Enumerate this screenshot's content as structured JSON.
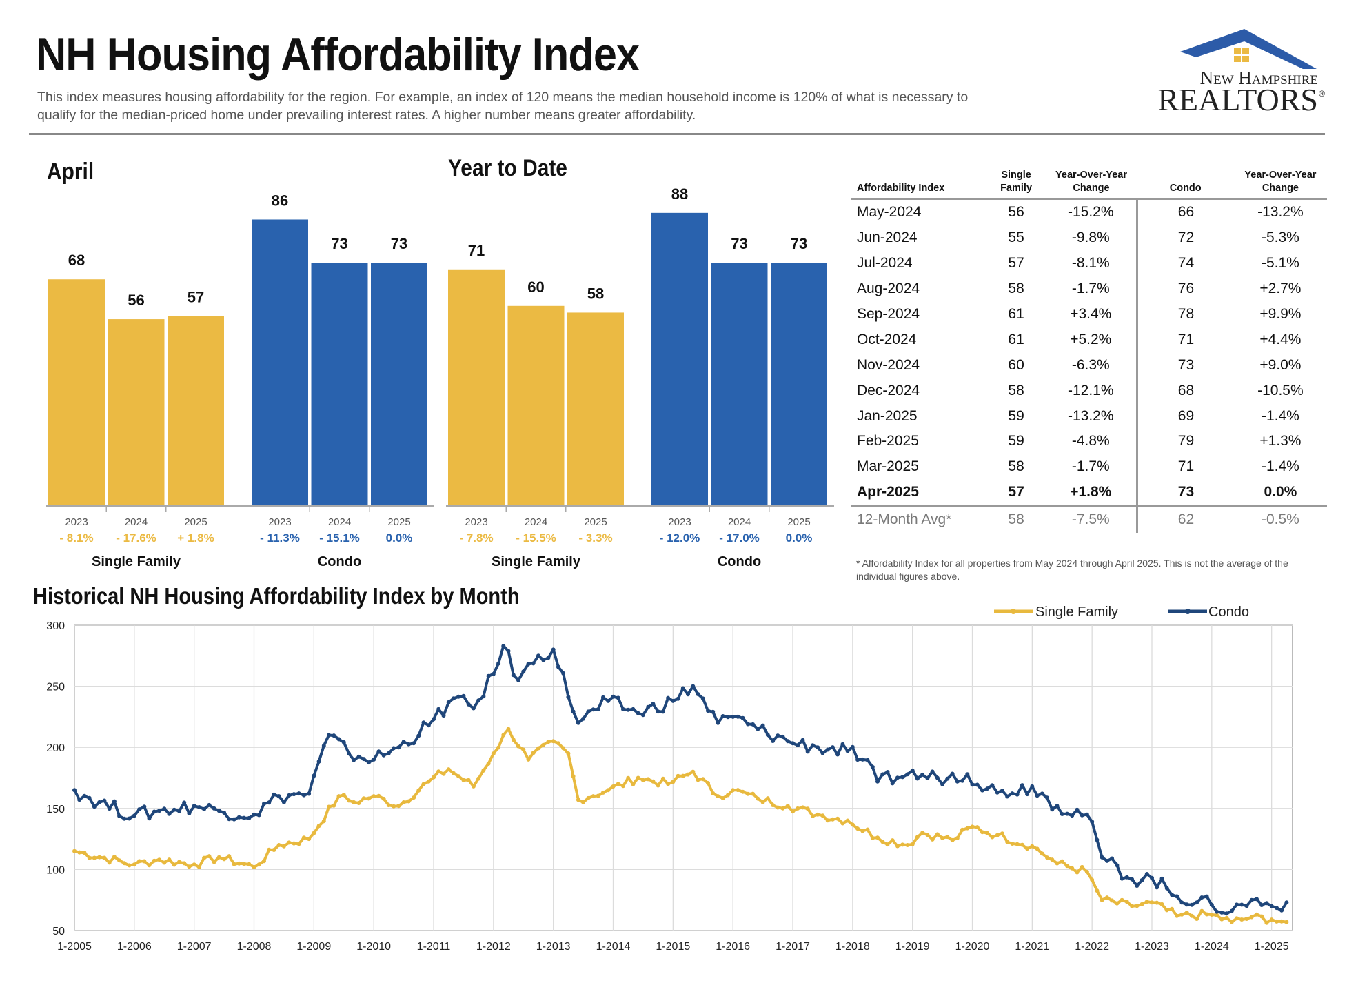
{
  "header": {
    "title": "NH Housing Affordability Index",
    "subtitle": "This index measures housing affordability for the region. For example, an index of 120 means the median household income is 120% of what is necessary to qualify for the median-priced home under prevailing interest rates. A higher number means greater affordability.",
    "logo_line1": "New Hampshire",
    "logo_line2": "REALTORS",
    "logo_mark": "®"
  },
  "colors": {
    "single_family": "#EBBA43",
    "condo": "#2962AE",
    "hist_sf": "#E8B93E",
    "hist_condo": "#1F467A"
  },
  "chart_data": [
    {
      "type": "bar",
      "title": "April",
      "groups": [
        {
          "name": "Single Family",
          "years": [
            "2023",
            "2024",
            "2025"
          ],
          "values": [
            68,
            56,
            57
          ],
          "changes": [
            "- 8.1%",
            "- 17.6%",
            "+ 1.8%"
          ]
        },
        {
          "name": "Condo",
          "years": [
            "2023",
            "2024",
            "2025"
          ],
          "values": [
            86,
            73,
            73
          ],
          "changes": [
            "- 11.3%",
            "- 15.1%",
            "0.0%"
          ]
        }
      ]
    },
    {
      "type": "bar",
      "title": "Year to Date",
      "groups": [
        {
          "name": "Single Family",
          "years": [
            "2023",
            "2024",
            "2025"
          ],
          "values": [
            71,
            60,
            58
          ],
          "changes": [
            "- 7.8%",
            "- 15.5%",
            "- 3.3%"
          ]
        },
        {
          "name": "Condo",
          "years": [
            "2023",
            "2024",
            "2025"
          ],
          "values": [
            88,
            73,
            73
          ],
          "changes": [
            "- 12.0%",
            "- 17.0%",
            "0.0%"
          ]
        }
      ]
    },
    {
      "type": "table",
      "columns": [
        "Affordability Index",
        "Single Family",
        "Year-Over-Year Change",
        "Condo",
        "Year-Over-Year Change"
      ],
      "rows": [
        [
          "May-2024",
          "56",
          "-15.2%",
          "66",
          "-13.2%"
        ],
        [
          "Jun-2024",
          "55",
          "-9.8%",
          "72",
          "-5.3%"
        ],
        [
          "Jul-2024",
          "57",
          "-8.1%",
          "74",
          "-5.1%"
        ],
        [
          "Aug-2024",
          "58",
          "-1.7%",
          "76",
          "+2.7%"
        ],
        [
          "Sep-2024",
          "61",
          "+3.4%",
          "78",
          "+9.9%"
        ],
        [
          "Oct-2024",
          "61",
          "+5.2%",
          "71",
          "+4.4%"
        ],
        [
          "Nov-2024",
          "60",
          "-6.3%",
          "73",
          "+9.0%"
        ],
        [
          "Dec-2024",
          "58",
          "-12.1%",
          "68",
          "-10.5%"
        ],
        [
          "Jan-2025",
          "59",
          "-13.2%",
          "69",
          "-1.4%"
        ],
        [
          "Feb-2025",
          "59",
          "-4.8%",
          "79",
          "+1.3%"
        ],
        [
          "Mar-2025",
          "58",
          "-1.7%",
          "71",
          "-1.4%"
        ],
        [
          "Apr-2025",
          "57",
          "+1.8%",
          "73",
          "0.0%"
        ]
      ],
      "avg_row": [
        "12-Month Avg*",
        "58",
        "-7.5%",
        "62",
        "-0.5%"
      ],
      "footnote": "* Affordability Index for all properties from May 2024 through April 2025. This is not the average of the individual figures above."
    },
    {
      "type": "line",
      "title": "Historical NH Housing Affordability Index by Month",
      "ylim": [
        50,
        300
      ],
      "yticks": [
        50,
        100,
        150,
        200,
        250,
        300
      ],
      "xticks": [
        "1-2005",
        "1-2006",
        "1-2007",
        "1-2008",
        "1-2009",
        "1-2010",
        "1-2011",
        "1-2012",
        "1-2013",
        "1-2014",
        "1-2015",
        "1-2016",
        "1-2017",
        "1-2018",
        "1-2019",
        "1-2020",
        "1-2021",
        "1-2022",
        "1-2023",
        "1-2024",
        "1-2025"
      ],
      "grid": true,
      "legend": "top-right",
      "series": [
        {
          "name": "Single Family",
          "anchors": [
            [
              "2005-01",
              115
            ],
            [
              "2006-01",
              104
            ],
            [
              "2006-06",
              108
            ],
            [
              "2007-01",
              104
            ],
            [
              "2007-06",
              110
            ],
            [
              "2008-01",
              102
            ],
            [
              "2008-06",
              120
            ],
            [
              "2008-12",
              125
            ],
            [
              "2009-06",
              160
            ],
            [
              "2009-09",
              155
            ],
            [
              "2010-01",
              160
            ],
            [
              "2010-06",
              152
            ],
            [
              "2010-12",
              172
            ],
            [
              "2011-04",
              182
            ],
            [
              "2011-09",
              168
            ],
            [
              "2012-01",
              195
            ],
            [
              "2012-04",
              215
            ],
            [
              "2012-08",
              190
            ],
            [
              "2013-01",
              205
            ],
            [
              "2013-04",
              195
            ],
            [
              "2013-06",
              157
            ],
            [
              "2013-12",
              165
            ],
            [
              "2014-06",
              175
            ],
            [
              "2014-12",
              170
            ],
            [
              "2015-05",
              180
            ],
            [
              "2015-10",
              160
            ],
            [
              "2016-01",
              165
            ],
            [
              "2016-06",
              158
            ],
            [
              "2016-12",
              152
            ],
            [
              "2017-06",
              145
            ],
            [
              "2017-12",
              140
            ],
            [
              "2018-06",
              126
            ],
            [
              "2018-12",
              120
            ],
            [
              "2019-03",
              130
            ],
            [
              "2019-09",
              124
            ],
            [
              "2020-01",
              135
            ],
            [
              "2020-06",
              128
            ],
            [
              "2021-01",
              119
            ],
            [
              "2021-06",
              105
            ],
            [
              "2021-12",
              98
            ],
            [
              "2022-03",
              75
            ],
            [
              "2022-09",
              70
            ],
            [
              "2023-01",
              73
            ],
            [
              "2023-06",
              62
            ],
            [
              "2024-01",
              63
            ],
            [
              "2024-05",
              57
            ],
            [
              "2024-09",
              61
            ],
            [
              "2025-01",
              59
            ],
            [
              "2025-04",
              57
            ]
          ]
        },
        {
          "name": "Condo",
          "anchors": [
            [
              "2005-01",
              165
            ],
            [
              "2005-06",
              155
            ],
            [
              "2006-01",
              144
            ],
            [
              "2006-06",
              148
            ],
            [
              "2007-01",
              152
            ],
            [
              "2007-06",
              148
            ],
            [
              "2008-01",
              145
            ],
            [
              "2008-06",
              160
            ],
            [
              "2008-12",
              162
            ],
            [
              "2009-04",
              210
            ],
            [
              "2009-08",
              195
            ],
            [
              "2010-01",
              190
            ],
            [
              "2010-06",
              200
            ],
            [
              "2010-12",
              218
            ],
            [
              "2011-05",
              240
            ],
            [
              "2011-09",
              232
            ],
            [
              "2012-01",
              260
            ],
            [
              "2012-03",
              283
            ],
            [
              "2012-06",
              255
            ],
            [
              "2012-10",
              275
            ],
            [
              "2013-01",
              280
            ],
            [
              "2013-06",
              220
            ],
            [
              "2013-12",
              238
            ],
            [
              "2014-06",
              228
            ],
            [
              "2015-01",
              238
            ],
            [
              "2015-05",
              250
            ],
            [
              "2015-10",
              220
            ],
            [
              "2016-01",
              225
            ],
            [
              "2016-06",
              215
            ],
            [
              "2016-12",
              205
            ],
            [
              "2017-06",
              200
            ],
            [
              "2017-12",
              197
            ],
            [
              "2018-03",
              190
            ],
            [
              "2018-06",
              172
            ],
            [
              "2018-12",
              178
            ],
            [
              "2019-06",
              175
            ],
            [
              "2019-12",
              178
            ],
            [
              "2020-06",
              163
            ],
            [
              "2021-01",
              168
            ],
            [
              "2021-06",
              152
            ],
            [
              "2021-12",
              145
            ],
            [
              "2022-03",
              110
            ],
            [
              "2022-09",
              92
            ],
            [
              "2023-01",
              93
            ],
            [
              "2023-06",
              78
            ],
            [
              "2024-01",
              71
            ],
            [
              "2024-05",
              66
            ],
            [
              "2024-09",
              75
            ],
            [
              "2025-01",
              70
            ],
            [
              "2025-04",
              73
            ]
          ]
        }
      ]
    }
  ]
}
